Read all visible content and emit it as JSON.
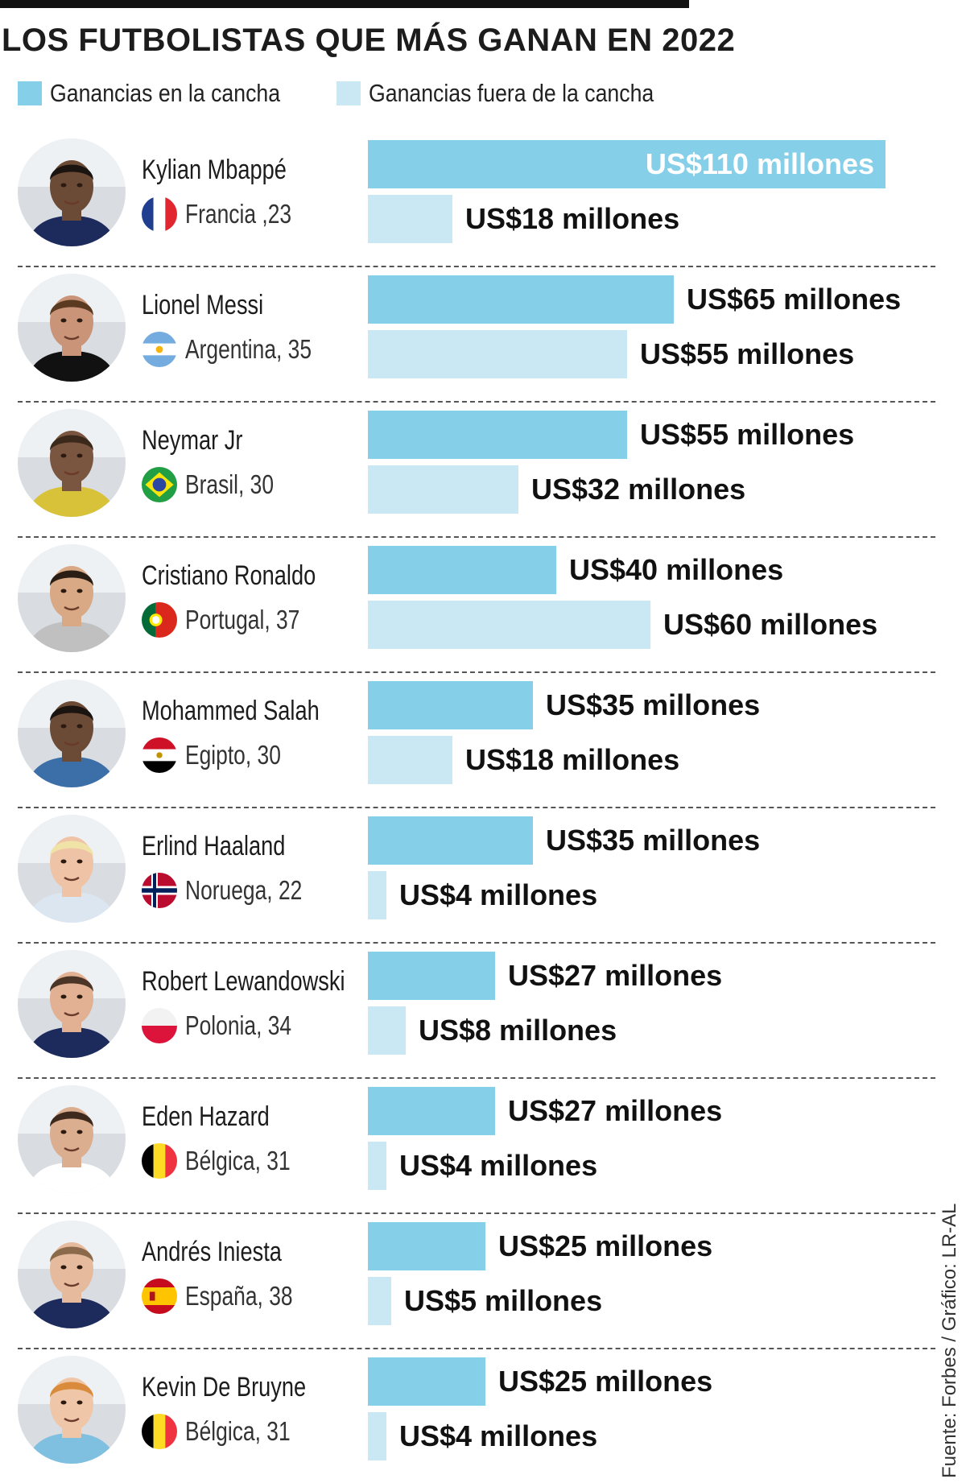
{
  "title": "LOS FUTBOLISTAS QUE MÁS GANAN EN 2022",
  "source": "Fuente: Forbes / Gráfico: LR-AL",
  "legend": [
    {
      "label": "Ganancias en la cancha",
      "color": "#86cfe8"
    },
    {
      "label": "Ganancias fuera de la cancha",
      "color": "#c9e8f3"
    }
  ],
  "chart_data": {
    "type": "bar",
    "orientation": "horizontal",
    "title": "LOS FUTBOLISTAS QUE MÁS GANAN EN 2022",
    "unit": "millones US$",
    "categories": [
      "Kylian Mbappé",
      "Lionel Messi",
      "Neymar Jr",
      "Cristiano Ronaldo",
      "Mohammed Salah",
      "Erlind Haaland",
      "Robert Lewandowski",
      "Eden Hazard",
      "Andrés Iniesta",
      "Kevin De Bruyne"
    ],
    "series": [
      {
        "name": "Ganancias en la cancha",
        "values": [
          110,
          65,
          55,
          40,
          35,
          35,
          27,
          27,
          25,
          25
        ]
      },
      {
        "name": "Ganancias fuera de la cancha",
        "values": [
          18,
          55,
          32,
          60,
          18,
          4,
          8,
          4,
          5,
          4
        ]
      }
    ],
    "xlim": [
      0,
      110
    ],
    "grid": false
  },
  "players": [
    {
      "name": "Kylian Mbappé",
      "country": "Francia ,23",
      "flag": "france-flag",
      "on_label": "US$110 millones",
      "off_label": "US$18 millones",
      "on": 110,
      "off": 18,
      "on_inside": true
    },
    {
      "name": "Lionel Messi",
      "country": "Argentina, 35",
      "flag": "argentina-flag",
      "on_label": "US$65 millones",
      "off_label": "US$55 millones",
      "on": 65,
      "off": 55,
      "on_inside": false
    },
    {
      "name": "Neymar Jr",
      "country": "Brasil, 30",
      "flag": "brazil-flag",
      "on_label": "US$55 millones",
      "off_label": "US$32 millones",
      "on": 55,
      "off": 32,
      "on_inside": false
    },
    {
      "name": "Cristiano Ronaldo",
      "country": "Portugal, 37",
      "flag": "portugal-flag",
      "on_label": "US$40 millones",
      "off_label": "US$60 millones",
      "on": 40,
      "off": 60,
      "on_inside": false
    },
    {
      "name": "Mohammed Salah",
      "country": "Egipto, 30",
      "flag": "egypt-flag",
      "on_label": "US$35 millones",
      "off_label": "US$18 millones",
      "on": 35,
      "off": 18,
      "on_inside": false
    },
    {
      "name": "Erlind Haaland",
      "country": "Noruega, 22",
      "flag": "norway-flag",
      "on_label": "US$35 millones",
      "off_label": "US$4  millones",
      "on": 35,
      "off": 4,
      "on_inside": false
    },
    {
      "name": "Robert Lewandowski",
      "country": "Polonia, 34",
      "flag": "poland-flag",
      "on_label": "US$27 millones",
      "off_label": "US$8 millones",
      "on": 27,
      "off": 8,
      "on_inside": false
    },
    {
      "name": "Eden Hazard",
      "country": "Bélgica, 31",
      "flag": "belgium-flag",
      "on_label": "US$27 millones",
      "off_label": "US$4 millones",
      "on": 27,
      "off": 4,
      "on_inside": false
    },
    {
      "name": "Andrés Iniesta",
      "country": "España, 38",
      "flag": "spain-flag",
      "on_label": "US$25 millones",
      "off_label": "US$5 millones",
      "on": 25,
      "off": 5,
      "on_inside": false
    },
    {
      "name": "Kevin De Bruyne",
      "country": "Bélgica, 31",
      "flag": "belgium-flag",
      "on_label": "US$25 millones",
      "off_label": "US$4 millones",
      "on": 25,
      "off": 4,
      "on_inside": false
    }
  ],
  "colors": {
    "on_field": "#86cfe8",
    "off_field": "#c9e8f3",
    "text": "#111111"
  }
}
